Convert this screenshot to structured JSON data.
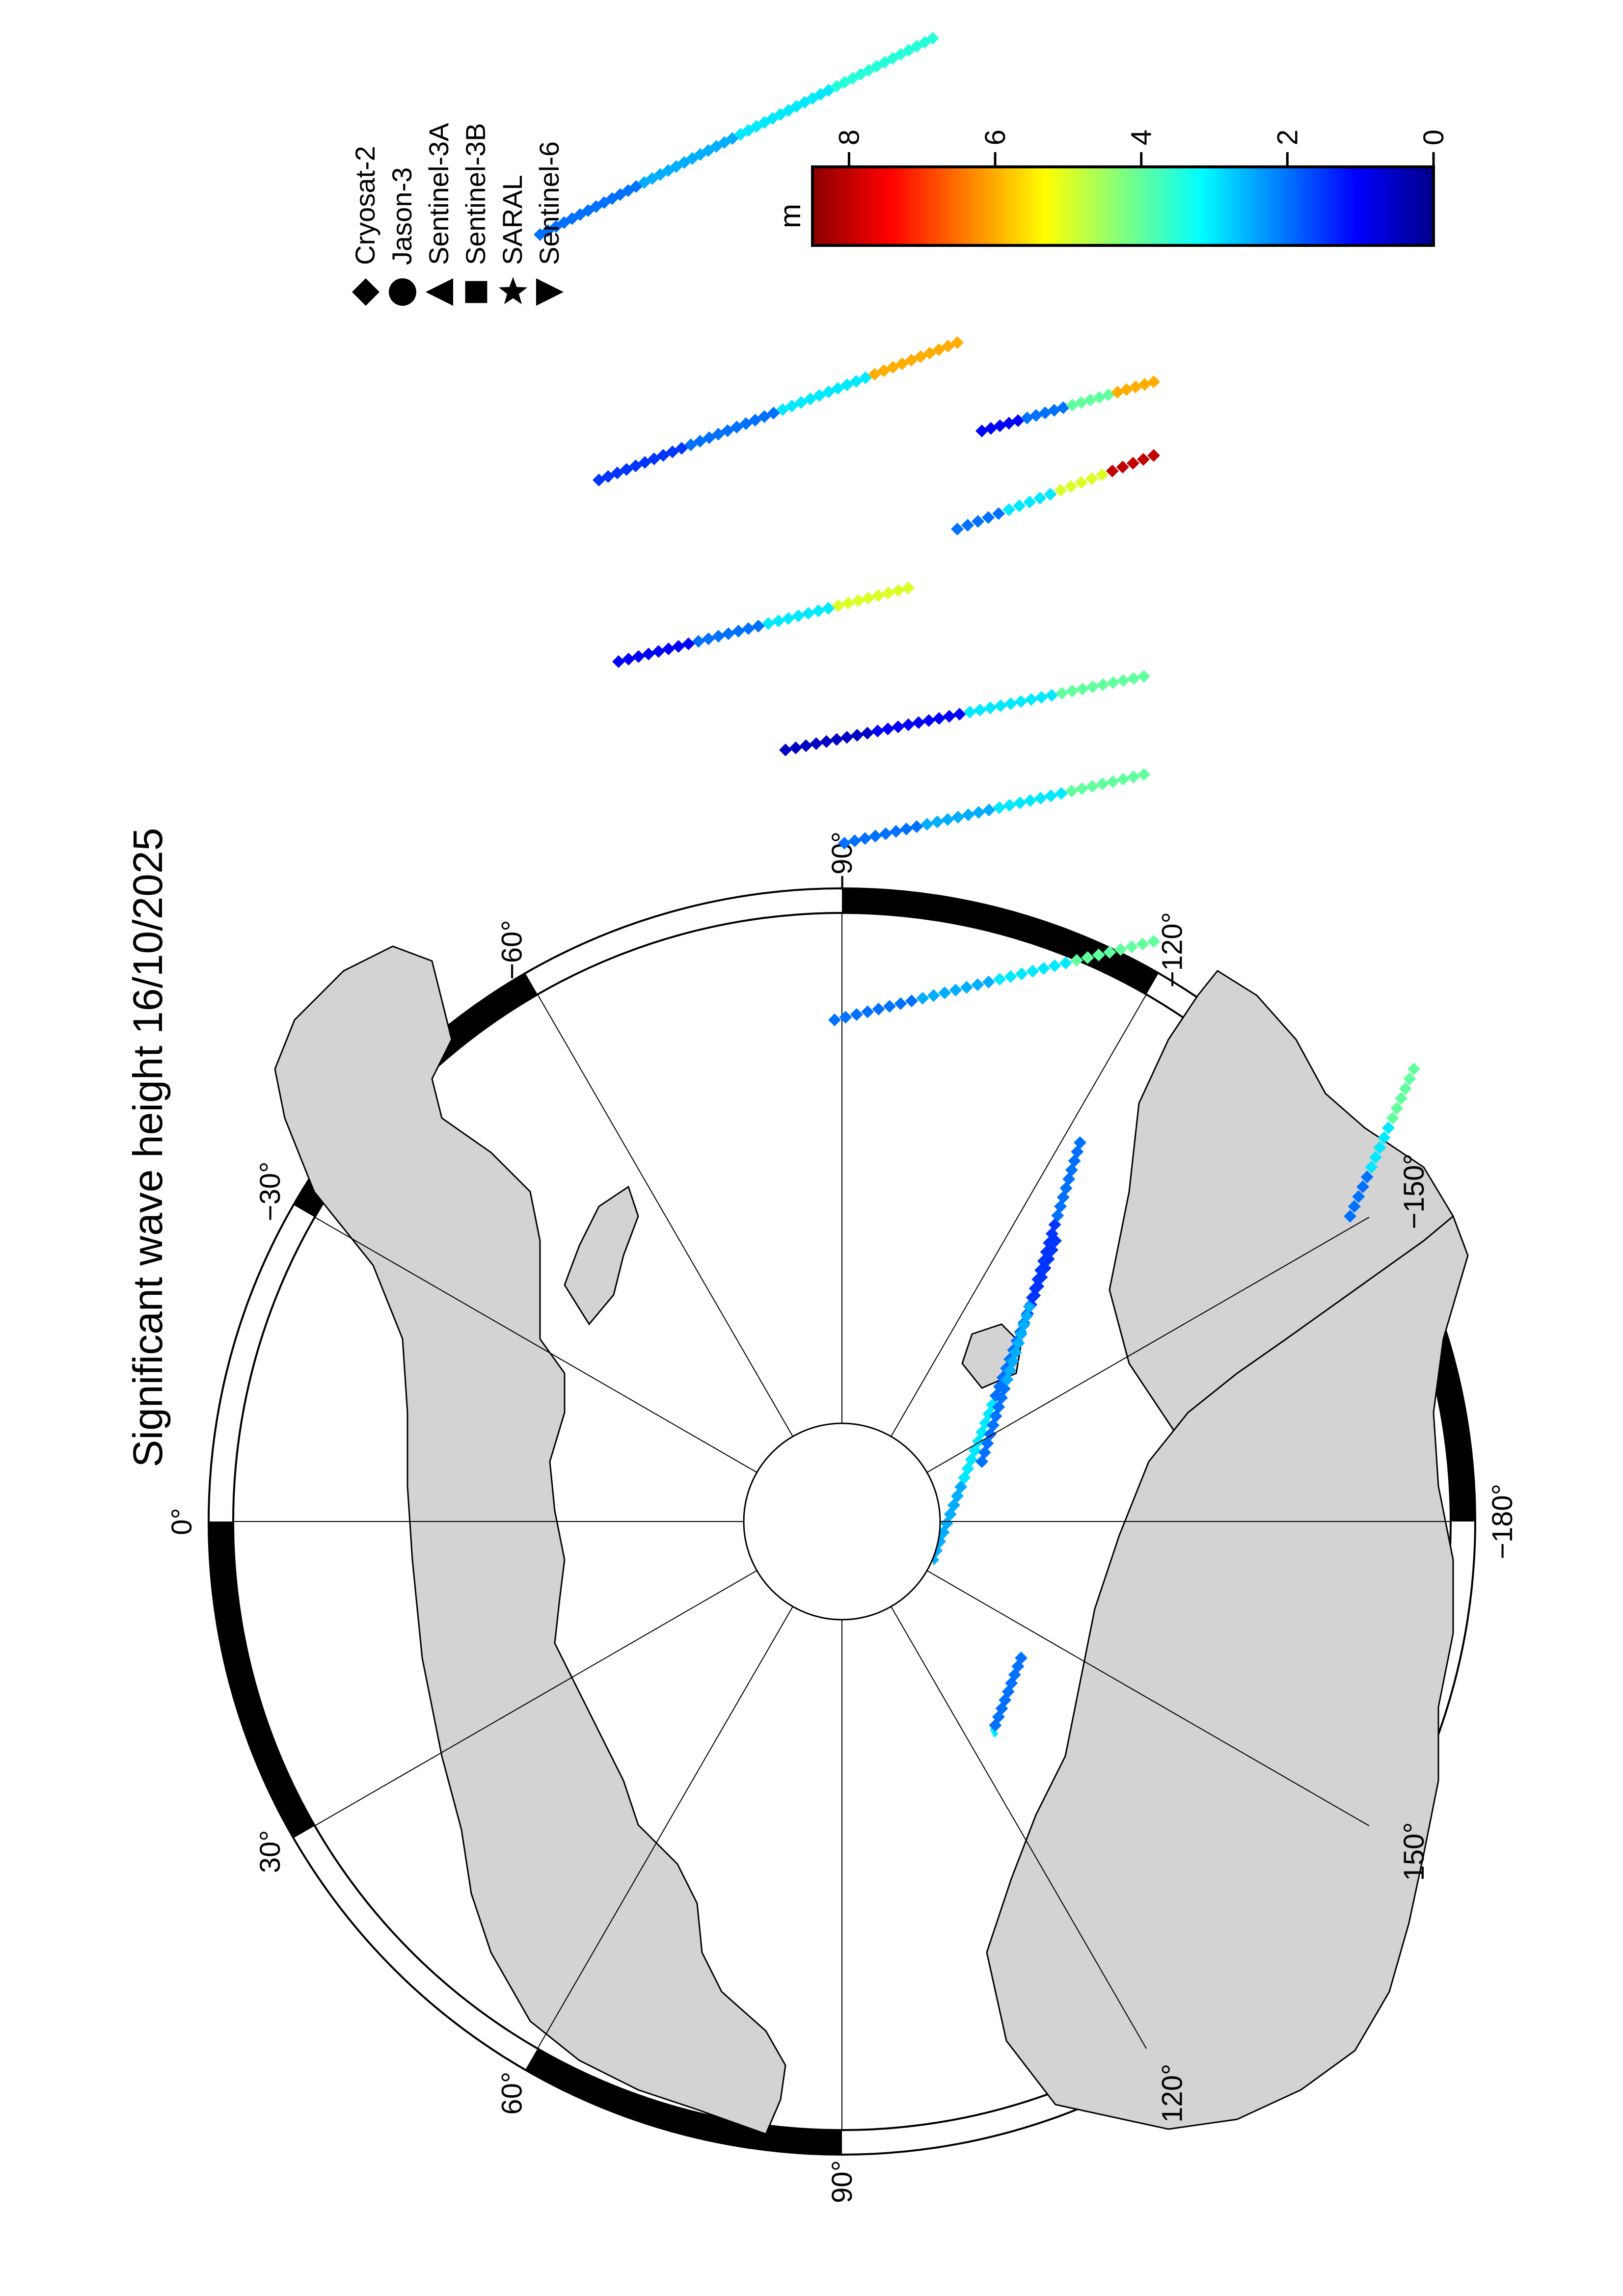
{
  "title": "Significant wave height 16/10/2025",
  "legend": {
    "items": [
      {
        "symbol": "diamond",
        "label": "Cryosat-2"
      },
      {
        "symbol": "circle",
        "label": "Jason-3"
      },
      {
        "symbol": "triangle-left",
        "label": "Sentinel-3A"
      },
      {
        "symbol": "square",
        "label": "Sentinel-3B"
      },
      {
        "symbol": "star",
        "label": "SARAL"
      },
      {
        "symbol": "triangle-right",
        "label": "Sentinel-6"
      }
    ]
  },
  "colorbar": {
    "unit": "m",
    "ticks": [
      "8",
      "6",
      "4",
      "2",
      "0"
    ],
    "range": [
      0,
      8.5
    ],
    "colors": [
      "#00008b",
      "#0000ff",
      "#0080ff",
      "#00ffff",
      "#80ff80",
      "#ffff00",
      "#ff8000",
      "#ff0000",
      "#8b0000"
    ]
  },
  "map": {
    "projection": "north polar stereographic",
    "longitude_labels": [
      "90°",
      "120°",
      "150°",
      "−180°",
      "−150°",
      "−120°",
      "−90°",
      "−60°",
      "−30°",
      "0°",
      "30°",
      "60°"
    ],
    "land_color": "#d3d3d3",
    "ocean_color": "#ffffff"
  },
  "chart_data": {
    "type": "scatter",
    "title": "Significant wave height 16/10/2025",
    "color_scale_unit": "m",
    "color_scale_range": [
      0,
      8.5
    ],
    "series": [
      {
        "name": "Cryosat-2",
        "swh_range_m": [
          0.5,
          8.5
        ]
      },
      {
        "name": "Jason-3"
      },
      {
        "name": "Sentinel-3A"
      },
      {
        "name": "Sentinel-3B"
      },
      {
        "name": "SARAL"
      },
      {
        "name": "Sentinel-6"
      }
    ]
  }
}
